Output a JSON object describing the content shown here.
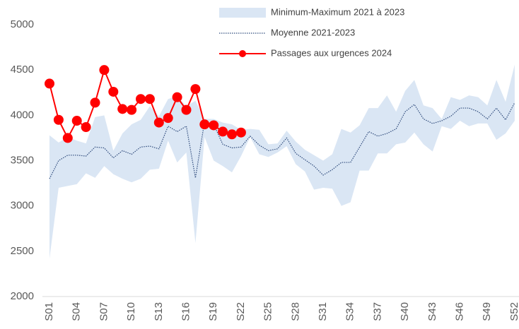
{
  "chart_data": {
    "type": "line",
    "categories": [
      "S01",
      null,
      null,
      "S04",
      null,
      null,
      "S07",
      null,
      null,
      "S10",
      null,
      null,
      "S13",
      null,
      null,
      "S16",
      null,
      null,
      "S19",
      null,
      null,
      "S22",
      null,
      null,
      "S25",
      null,
      null,
      "S28",
      null,
      null,
      "S31",
      null,
      null,
      "S34",
      null,
      null,
      "S37",
      null,
      null,
      "S40",
      null,
      null,
      "S43",
      null,
      null,
      "S46",
      null,
      null,
      "S49",
      null,
      null,
      "S52"
    ],
    "ylim": [
      2000,
      5000
    ],
    "yticks": [
      2000,
      2500,
      3000,
      3500,
      4000,
      4500,
      5000
    ],
    "grid": false,
    "legend": "top-right",
    "series": [
      {
        "name": "Minimum-Maximum 2021 à 2023",
        "color": "#dae6f4",
        "style": "band",
        "lower": [
          2420,
          3200,
          3220,
          3240,
          3360,
          3310,
          3440,
          3350,
          3300,
          3260,
          3300,
          3400,
          3410,
          3720,
          3480,
          3590,
          2590,
          3760,
          3500,
          3440,
          3370,
          3550,
          3760,
          3570,
          3540,
          3590,
          3660,
          3460,
          3380,
          3180,
          3200,
          3190,
          3000,
          3040,
          3390,
          3390,
          3580,
          3580,
          3680,
          3700,
          3810,
          3680,
          3600,
          3880,
          3850,
          3940,
          3880,
          3910,
          3910,
          3730,
          3800,
          3940
        ],
        "upper": [
          3780,
          3700,
          3760,
          3720,
          3690,
          3980,
          4000,
          3610,
          3800,
          3900,
          3950,
          4100,
          3990,
          4180,
          4210,
          4100,
          4160,
          3960,
          3960,
          3920,
          3900,
          3840,
          3850,
          3840,
          3680,
          3690,
          3830,
          3710,
          3620,
          3560,
          3500,
          3570,
          3850,
          3810,
          3890,
          4080,
          4080,
          4220,
          4040,
          4270,
          4390,
          4110,
          4080,
          3960,
          4200,
          4170,
          4220,
          4200,
          4110,
          4390,
          4150,
          4560
        ]
      },
      {
        "name": "Moyenne 2021-2023",
        "color": "#2f4b7c",
        "style": "dotted",
        "values": [
          3300,
          3500,
          3560,
          3560,
          3550,
          3650,
          3640,
          3530,
          3610,
          3570,
          3650,
          3660,
          3630,
          3880,
          3820,
          3880,
          3310,
          3930,
          3900,
          3680,
          3640,
          3650,
          3770,
          3670,
          3610,
          3630,
          3750,
          3580,
          3510,
          3440,
          3340,
          3400,
          3480,
          3480,
          3650,
          3820,
          3770,
          3800,
          3850,
          4040,
          4120,
          3960,
          3910,
          3940,
          3990,
          4080,
          4080,
          4040,
          3960,
          4080,
          3950,
          4140
        ]
      },
      {
        "name": "Passages aux urgences 2024",
        "color": "#ff0000",
        "style": "markers",
        "values": [
          4350,
          3950,
          3750,
          3940,
          3870,
          4140,
          4500,
          4260,
          4070,
          4060,
          4180,
          4180,
          3920,
          3970,
          4200,
          4060,
          4290,
          3900,
          3890,
          3820,
          3790,
          3810,
          null,
          null,
          null,
          null,
          null,
          null,
          null,
          null,
          null,
          null,
          null,
          null,
          null,
          null,
          null,
          null,
          null,
          null,
          null,
          null,
          null,
          null,
          null,
          null,
          null,
          null,
          null,
          null,
          null,
          null
        ]
      }
    ]
  }
}
